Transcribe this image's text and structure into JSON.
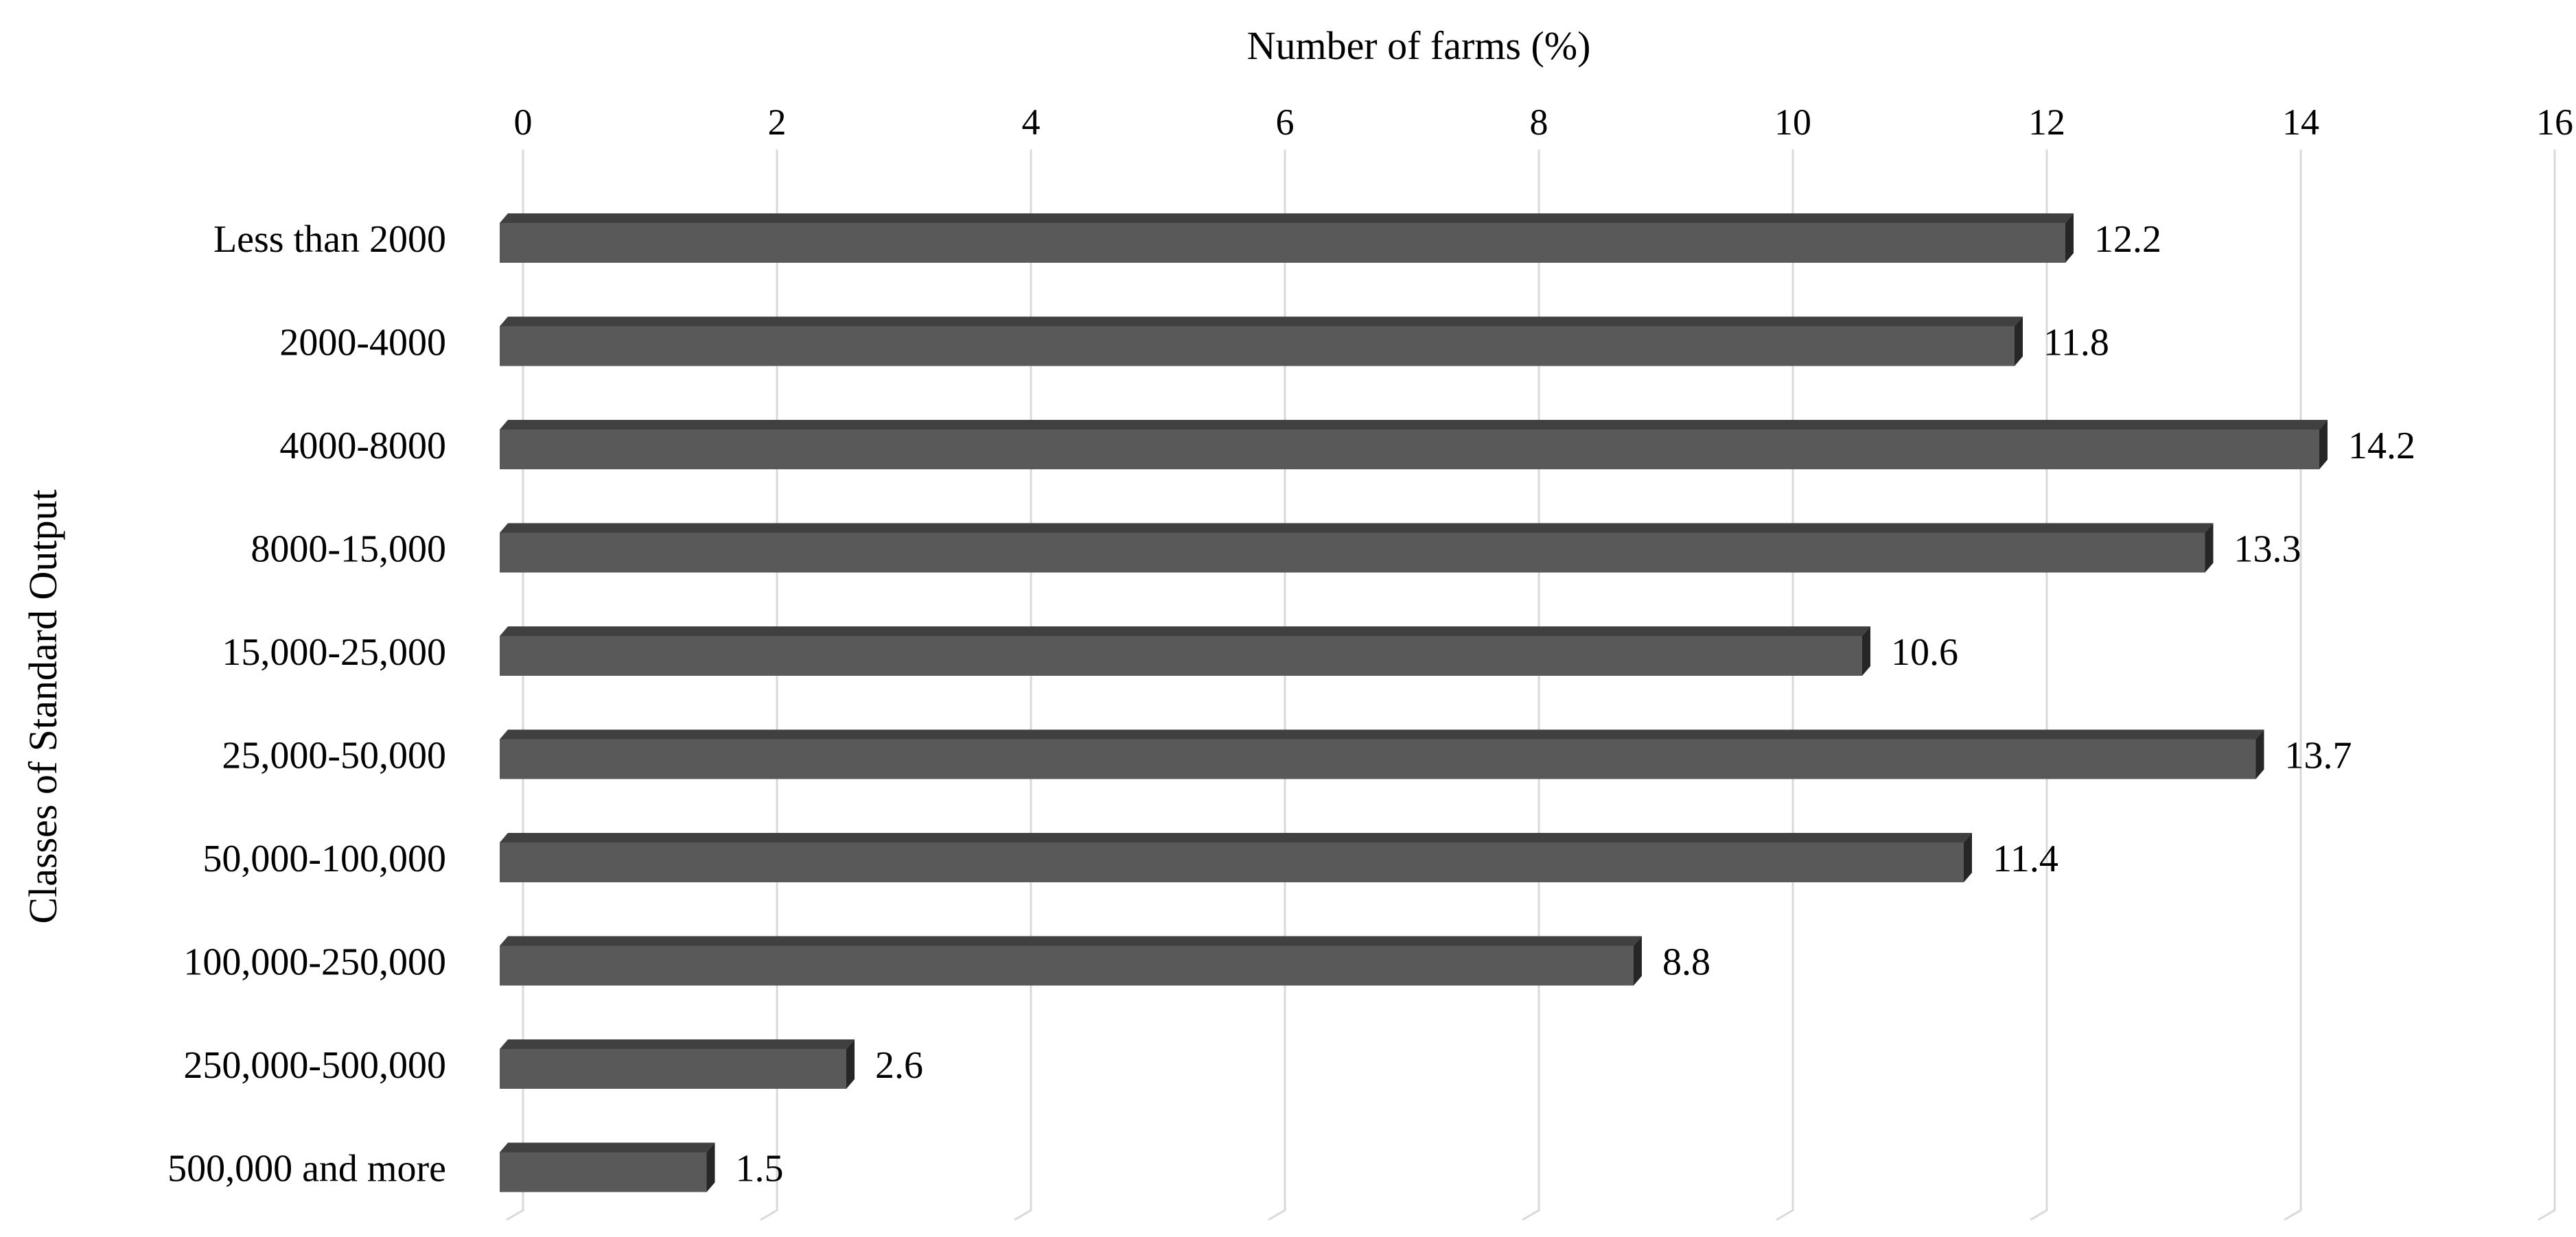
{
  "chart_data": {
    "type": "bar",
    "orientation": "horizontal",
    "title": "",
    "xlabel": "Number of farms (%)",
    "ylabel": "Classes of  Standard Output",
    "xlim": [
      0,
      16
    ],
    "x_ticks": [
      0,
      2,
      4,
      6,
      8,
      10,
      12,
      14,
      16
    ],
    "x_axis_position": "top",
    "grid": "vertical",
    "legend": "none",
    "categories": [
      "Less than 2000",
      "2000-4000",
      "4000-8000",
      "8000-15,000",
      "15,000-25,000",
      "25,000-50,000",
      "50,000-100,000",
      "100,000-250,000",
      "250,000-500,000",
      "500,000 and more"
    ],
    "values": [
      12.2,
      11.8,
      14.2,
      13.3,
      10.6,
      13.7,
      11.4,
      8.8,
      2.6,
      1.5
    ],
    "value_labels": [
      "12.2",
      "11.8",
      "14.2",
      "13.3",
      "10.6",
      "13.7",
      "11.4",
      "8.8",
      "2.6",
      "1.5"
    ],
    "colors": {
      "bar_front": "#595959",
      "bar_top": "#404040",
      "bar_side": "#262626",
      "grid": "#d9d9d9"
    }
  }
}
